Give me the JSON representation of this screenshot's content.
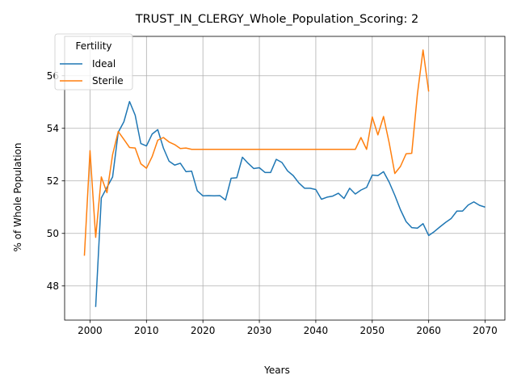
{
  "chart_data": {
    "type": "line",
    "title": "TRUST_IN_CLERGY_Whole_Population_Scoring: 2",
    "xlabel": "Years",
    "ylabel": "% of Whole Population",
    "xlim": [
      1995.5,
      2073.5
    ],
    "ylim": [
      46.7,
      57.5
    ],
    "xticks": [
      2000,
      2010,
      2020,
      2030,
      2040,
      2050,
      2060,
      2070
    ],
    "yticks": [
      48,
      50,
      52,
      54,
      56
    ],
    "grid": true,
    "legend": {
      "title": "Fertility",
      "placement": "top-left"
    },
    "series": [
      {
        "name": "Ideal",
        "color": "#1f77b4",
        "x": [
          2001,
          2002,
          2003,
          2004,
          2005,
          2006,
          2007,
          2008,
          2009,
          2010,
          2011,
          2012,
          2013,
          2014,
          2015,
          2016,
          2017,
          2018,
          2019,
          2020,
          2021,
          2022,
          2023,
          2024,
          2025,
          2026,
          2027,
          2028,
          2029,
          2030,
          2031,
          2032,
          2033,
          2034,
          2035,
          2036,
          2037,
          2038,
          2039,
          2040,
          2041,
          2042,
          2043,
          2044,
          2045,
          2046,
          2047,
          2048,
          2049,
          2050,
          2051,
          2052,
          2053,
          2054,
          2055,
          2056,
          2057,
          2058,
          2059,
          2060,
          2061,
          2062,
          2063,
          2064,
          2065,
          2066,
          2067,
          2068,
          2069,
          2070
        ],
        "values": [
          47.2,
          51.35,
          51.75,
          52.15,
          53.85,
          54.25,
          55.02,
          54.5,
          53.42,
          53.33,
          53.78,
          53.95,
          53.25,
          52.75,
          52.6,
          52.67,
          52.35,
          52.37,
          51.62,
          51.43,
          51.44,
          51.43,
          51.44,
          51.27,
          52.1,
          52.12,
          52.9,
          52.67,
          52.47,
          52.5,
          52.32,
          52.32,
          52.82,
          52.7,
          52.38,
          52.2,
          51.92,
          51.72,
          51.72,
          51.67,
          51.3,
          51.38,
          51.42,
          51.53,
          51.33,
          51.72,
          51.5,
          51.65,
          51.75,
          52.22,
          52.2,
          52.35,
          51.95,
          51.45,
          50.9,
          50.45,
          50.22,
          50.2,
          50.37,
          49.92,
          50.07,
          50.25,
          50.42,
          50.57,
          50.85,
          50.85,
          51.08,
          51.2,
          51.07,
          51.0
        ]
      },
      {
        "name": "Sterile",
        "color": "#ff7f0e",
        "x": [
          1999,
          2000,
          2001,
          2002,
          2003,
          2004,
          2005,
          2006,
          2007,
          2008,
          2009,
          2010,
          2011,
          2012,
          2013,
          2014,
          2015,
          2016,
          2017,
          2018,
          2019,
          2020,
          2021,
          2022,
          2023,
          2024,
          2025,
          2026,
          2027,
          2028,
          2029,
          2030,
          2031,
          2032,
          2033,
          2034,
          2035,
          2036,
          2037,
          2038,
          2039,
          2040,
          2041,
          2042,
          2043,
          2044,
          2045,
          2046,
          2047,
          2048,
          2049,
          2050,
          2051,
          2052,
          2053,
          2054,
          2055,
          2056,
          2057,
          2058,
          2059,
          2060
        ],
        "values": [
          49.15,
          53.15,
          49.85,
          52.15,
          51.55,
          53.0,
          53.88,
          53.58,
          53.27,
          53.25,
          52.65,
          52.48,
          52.92,
          53.55,
          53.65,
          53.48,
          53.38,
          53.23,
          53.25,
          53.2,
          53.2,
          53.2,
          53.2,
          53.2,
          53.2,
          53.2,
          53.2,
          53.2,
          53.2,
          53.2,
          53.2,
          53.2,
          53.2,
          53.2,
          53.2,
          53.2,
          53.2,
          53.2,
          53.2,
          53.2,
          53.2,
          53.2,
          53.2,
          53.2,
          53.2,
          53.2,
          53.2,
          53.2,
          53.2,
          53.65,
          53.2,
          54.43,
          53.75,
          54.45,
          53.45,
          52.28,
          52.55,
          53.03,
          53.05,
          55.3,
          56.98,
          55.4
        ]
      }
    ]
  }
}
